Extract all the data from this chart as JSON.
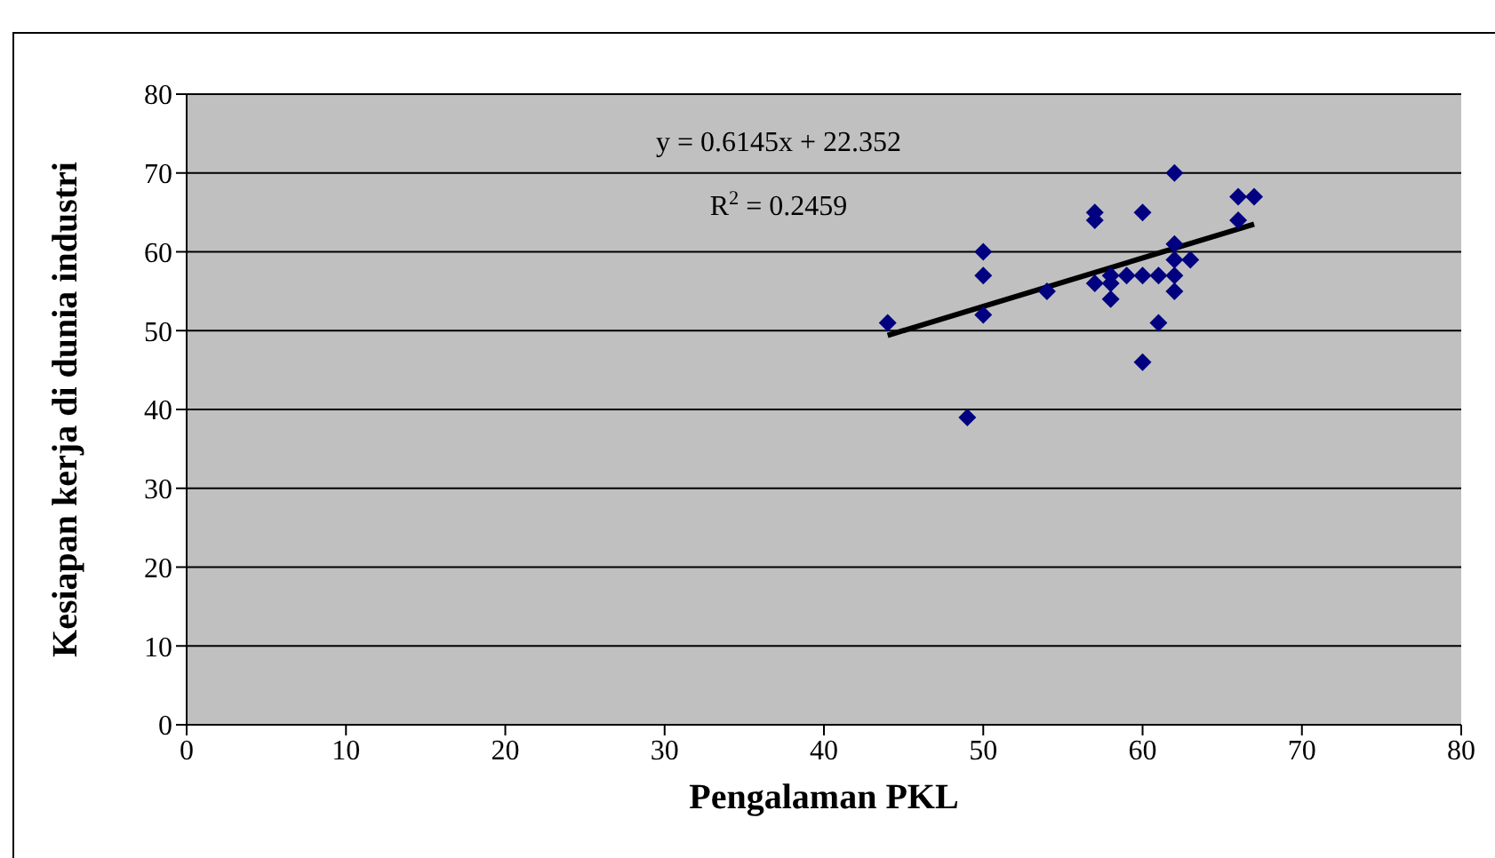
{
  "chart_data": {
    "type": "scatter",
    "xlabel": "Pengalaman PKL",
    "ylabel": "Kesiapan kerja di dunia industri",
    "x": [
      44,
      49,
      50,
      50,
      50,
      54,
      57,
      57,
      57,
      58,
      58,
      58,
      59,
      60,
      60,
      60,
      61,
      61,
      62,
      62,
      62,
      62,
      62,
      63,
      66,
      66,
      67
    ],
    "series": [
      {
        "color": "#000080",
        "marker": "diamond",
        "values": [
          51,
          39,
          60,
          57,
          52,
          55,
          65,
          64,
          56,
          57,
          54,
          56,
          57,
          65,
          57,
          46,
          57,
          51,
          70,
          61,
          59,
          57,
          55,
          59,
          67,
          64,
          67
        ]
      },
      {
        "type": "line",
        "color": "#000000",
        "marker": "none",
        "line_style": "solid",
        "x": [
          44,
          67
        ],
        "values": [
          49.4,
          63.5
        ]
      }
    ],
    "xlim": [
      0,
      80
    ],
    "xticks": [
      0,
      10,
      20,
      30,
      40,
      50,
      60,
      70,
      80
    ],
    "ylim": [
      0,
      80
    ],
    "yticks": [
      0,
      10,
      20,
      30,
      40,
      50,
      60,
      70,
      80
    ],
    "grid": "y",
    "annotations": [
      "y = 0.6145x + 22.352",
      "R$^{2}$ = 0.2459"
    ]
  }
}
